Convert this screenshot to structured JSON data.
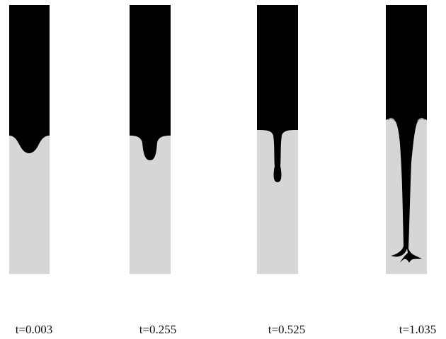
{
  "panels": [
    {
      "label": "t=0.003"
    },
    {
      "label": "t=0.255"
    },
    {
      "label": "t=0.525"
    },
    {
      "label": "t=1.035"
    }
  ]
}
